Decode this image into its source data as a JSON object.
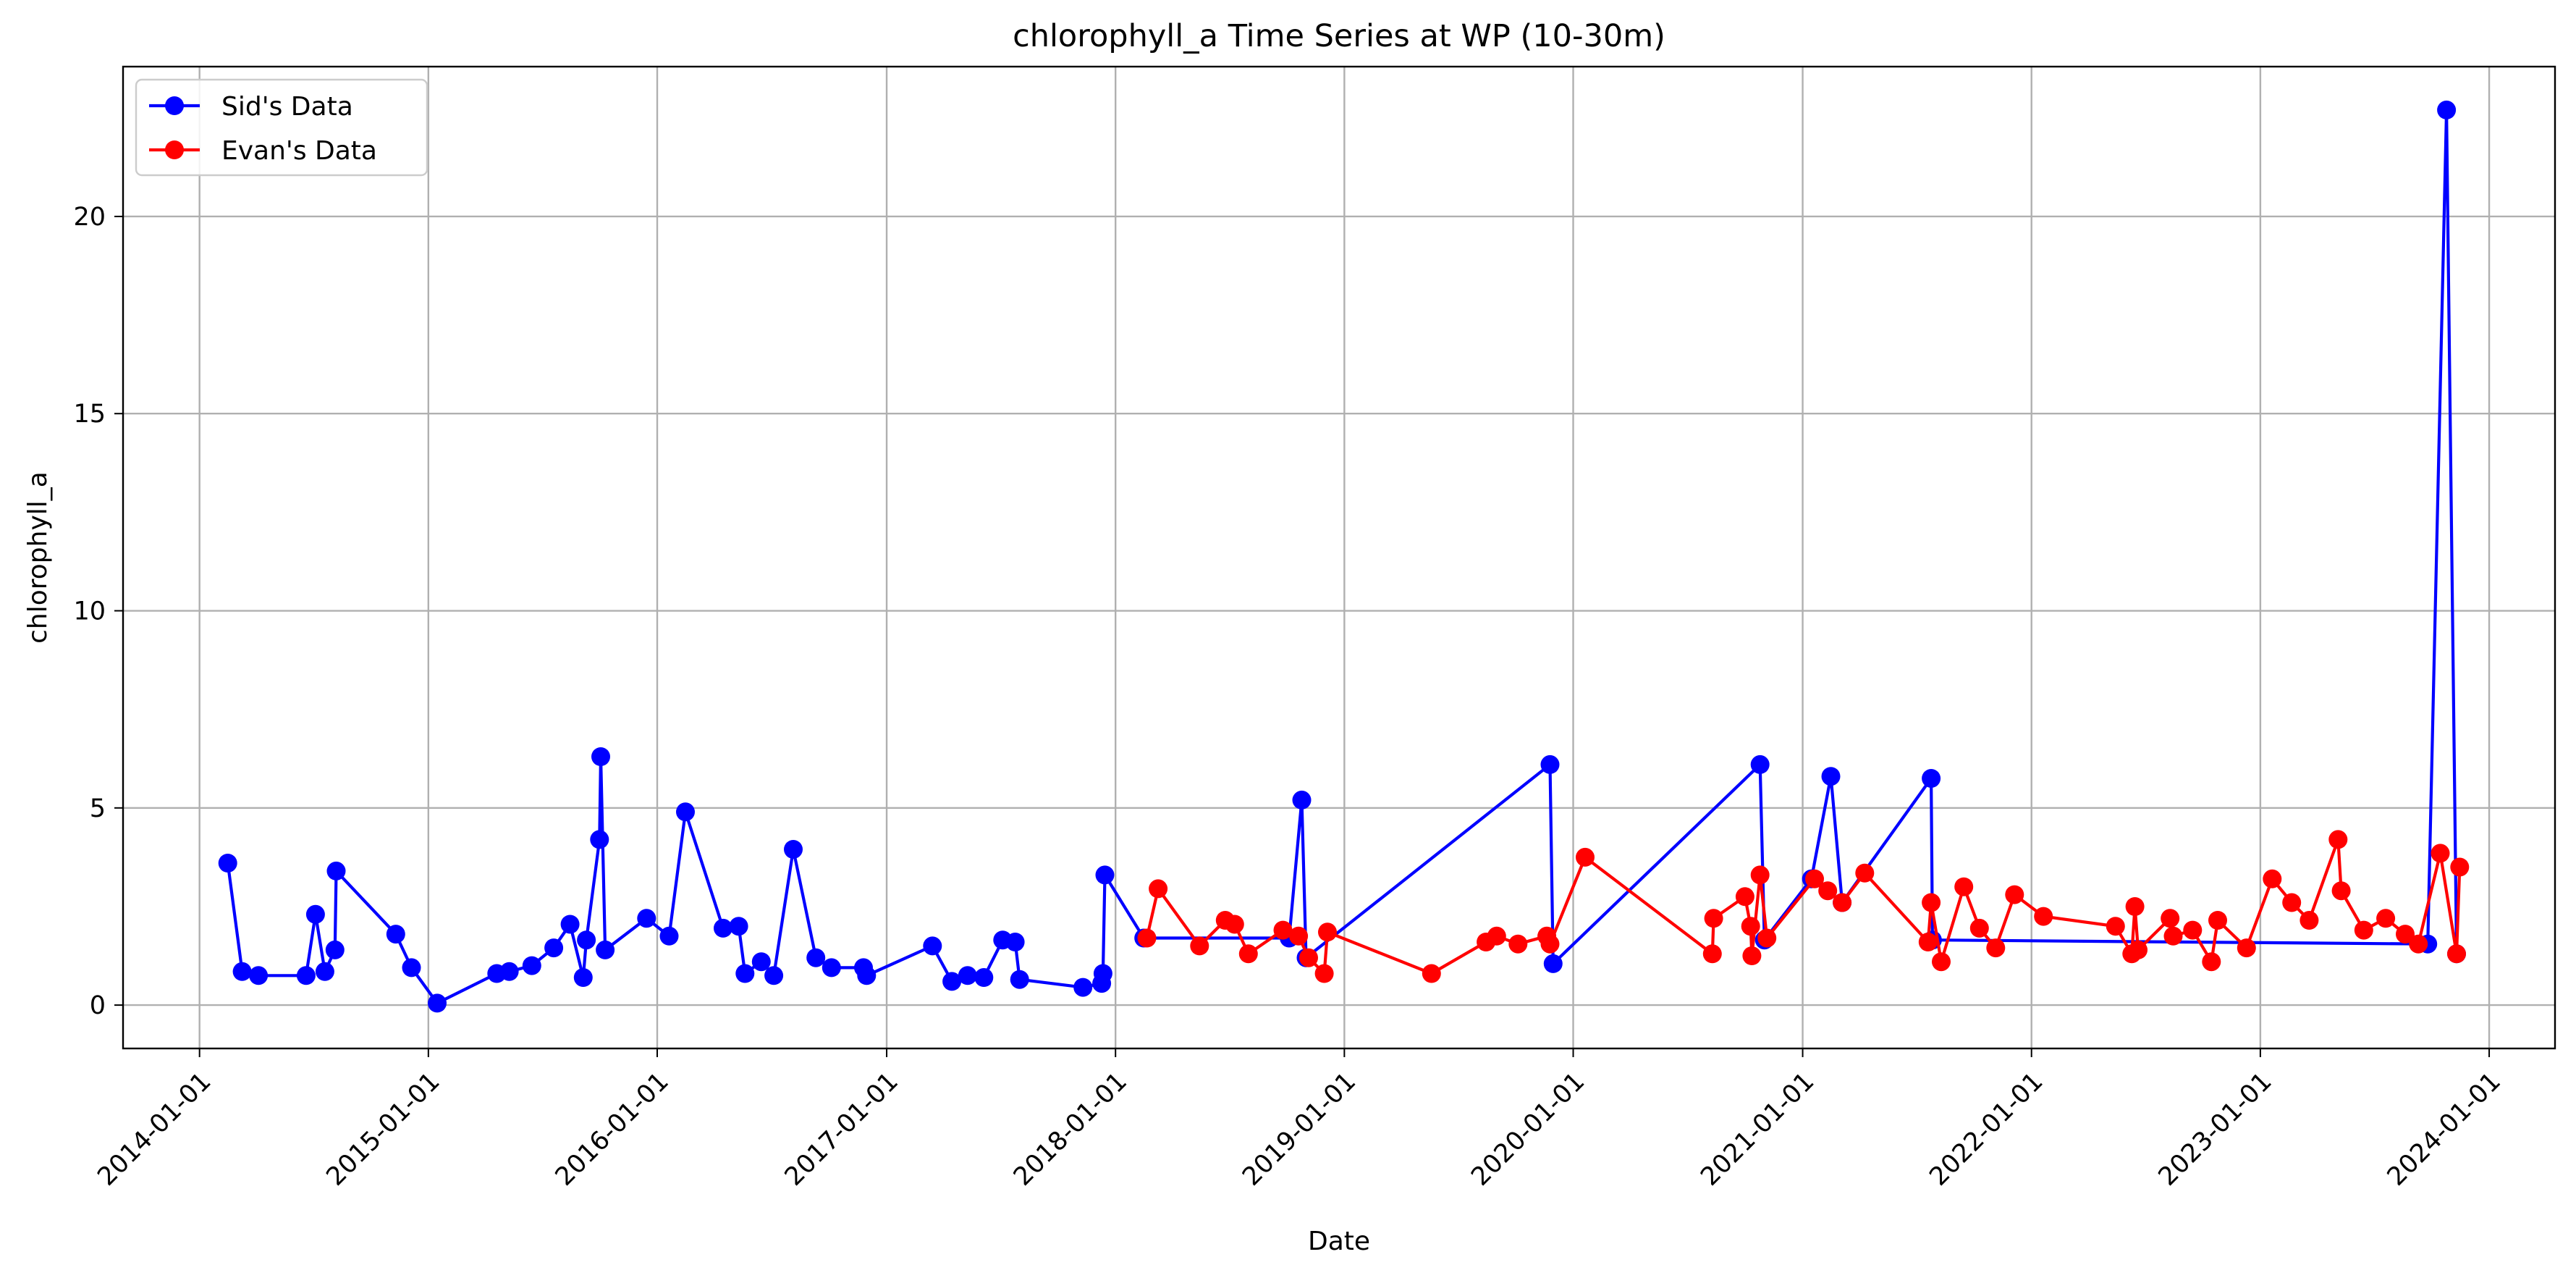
{
  "chart_data": {
    "type": "line",
    "title": "chlorophyll_a Time Series at WP (10-30m)",
    "xlabel": "Date",
    "ylabel": "chlorophyll_a",
    "x_axis": "date",
    "xlim": [
      "2013-09-01",
      "2024-04-15"
    ],
    "ylim": [
      -1.1,
      23.8
    ],
    "yticks": [
      0,
      5,
      10,
      15,
      20
    ],
    "xticks": [
      "2014-01-01",
      "2015-01-01",
      "2016-01-01",
      "2017-01-01",
      "2018-01-01",
      "2019-01-01",
      "2020-01-01",
      "2021-01-01",
      "2022-01-01",
      "2023-01-01",
      "2024-01-01"
    ],
    "grid": true,
    "legend_position": "top-left",
    "marker": "circle",
    "series": [
      {
        "name": "Sid's Data",
        "color": "#0000ff",
        "points": [
          [
            "2014-02-15",
            3.6
          ],
          [
            "2014-03-10",
            0.85
          ],
          [
            "2014-04-05",
            0.75
          ],
          [
            "2014-06-20",
            0.75
          ],
          [
            "2014-07-05",
            2.3
          ],
          [
            "2014-07-20",
            0.85
          ],
          [
            "2014-08-05",
            1.4
          ],
          [
            "2014-08-07",
            3.4
          ],
          [
            "2014-11-10",
            1.8
          ],
          [
            "2014-12-05",
            0.95
          ],
          [
            "2015-01-15",
            0.05
          ],
          [
            "2015-04-20",
            0.8
          ],
          [
            "2015-05-10",
            0.85
          ],
          [
            "2015-06-15",
            1.0
          ],
          [
            "2015-07-20",
            1.45
          ],
          [
            "2015-08-15",
            2.05
          ],
          [
            "2015-09-05",
            0.7
          ],
          [
            "2015-09-10",
            1.65
          ],
          [
            "2015-10-01",
            4.2
          ],
          [
            "2015-10-03",
            6.3
          ],
          [
            "2015-10-10",
            1.4
          ],
          [
            "2015-12-15",
            2.2
          ],
          [
            "2016-01-20",
            1.75
          ],
          [
            "2016-02-15",
            4.9
          ],
          [
            "2016-04-15",
            1.95
          ],
          [
            "2016-05-10",
            2.0
          ],
          [
            "2016-05-20",
            0.8
          ],
          [
            "2016-06-15",
            1.1
          ],
          [
            "2016-07-05",
            0.75
          ],
          [
            "2016-08-05",
            3.95
          ],
          [
            "2016-09-10",
            1.2
          ],
          [
            "2016-10-05",
            0.95
          ],
          [
            "2016-11-25",
            0.95
          ],
          [
            "2016-11-30",
            0.75
          ],
          [
            "2017-03-15",
            1.5
          ],
          [
            "2017-04-15",
            0.6
          ],
          [
            "2017-05-10",
            0.75
          ],
          [
            "2017-06-05",
            0.7
          ],
          [
            "2017-07-05",
            1.65
          ],
          [
            "2017-07-25",
            1.6
          ],
          [
            "2017-08-01",
            0.65
          ],
          [
            "2017-11-10",
            0.45
          ],
          [
            "2017-12-10",
            0.55
          ],
          [
            "2017-12-12",
            0.8
          ],
          [
            "2017-12-15",
            3.3
          ],
          [
            "2018-02-15",
            1.7
          ],
          [
            "2018-10-05",
            1.7
          ],
          [
            "2018-10-25",
            5.2
          ],
          [
            "2018-11-01",
            1.2
          ],
          [
            "2019-11-25",
            6.1
          ],
          [
            "2019-11-30",
            1.05
          ],
          [
            "2020-10-25",
            6.1
          ],
          [
            "2020-11-01",
            1.65
          ],
          [
            "2021-01-15",
            3.2
          ],
          [
            "2021-02-15",
            5.8
          ],
          [
            "2021-03-05",
            2.6
          ],
          [
            "2021-07-25",
            5.75
          ],
          [
            "2021-07-27",
            1.65
          ],
          [
            "2023-09-25",
            1.55
          ],
          [
            "2023-10-25",
            22.7
          ],
          [
            "2023-11-10",
            1.3
          ]
        ]
      },
      {
        "name": "Evan's Data",
        "color": "#ff0000",
        "points": [
          [
            "2018-02-20",
            1.7
          ],
          [
            "2018-03-10",
            2.95
          ],
          [
            "2018-05-15",
            1.5
          ],
          [
            "2018-06-25",
            2.15
          ],
          [
            "2018-07-10",
            2.05
          ],
          [
            "2018-08-01",
            1.3
          ],
          [
            "2018-09-25",
            1.9
          ],
          [
            "2018-10-20",
            1.75
          ],
          [
            "2018-11-05",
            1.2
          ],
          [
            "2018-11-30",
            0.8
          ],
          [
            "2018-12-05",
            1.85
          ],
          [
            "2019-05-20",
            0.8
          ],
          [
            "2019-08-15",
            1.6
          ],
          [
            "2019-09-01",
            1.75
          ],
          [
            "2019-10-05",
            1.55
          ],
          [
            "2019-11-20",
            1.75
          ],
          [
            "2019-11-25",
            1.55
          ],
          [
            "2020-01-20",
            3.75
          ],
          [
            "2020-08-10",
            1.3
          ],
          [
            "2020-08-12",
            2.2
          ],
          [
            "2020-10-01",
            2.75
          ],
          [
            "2020-10-10",
            2.0
          ],
          [
            "2020-10-12",
            1.25
          ],
          [
            "2020-10-25",
            3.3
          ],
          [
            "2020-11-05",
            1.7
          ],
          [
            "2021-01-20",
            3.2
          ],
          [
            "2021-02-10",
            2.9
          ],
          [
            "2021-03-05",
            2.6
          ],
          [
            "2021-04-10",
            3.35
          ],
          [
            "2021-07-20",
            1.6
          ],
          [
            "2021-07-25",
            2.6
          ],
          [
            "2021-08-10",
            1.1
          ],
          [
            "2021-09-15",
            3.0
          ],
          [
            "2021-10-10",
            1.95
          ],
          [
            "2021-11-05",
            1.45
          ],
          [
            "2021-12-05",
            2.8
          ],
          [
            "2022-01-20",
            2.25
          ],
          [
            "2022-05-15",
            2.0
          ],
          [
            "2022-06-10",
            1.3
          ],
          [
            "2022-06-15",
            2.5
          ],
          [
            "2022-06-20",
            1.4
          ],
          [
            "2022-08-10",
            2.2
          ],
          [
            "2022-08-15",
            1.75
          ],
          [
            "2022-09-15",
            1.9
          ],
          [
            "2022-10-15",
            1.1
          ],
          [
            "2022-10-25",
            2.15
          ],
          [
            "2022-12-10",
            1.45
          ],
          [
            "2023-01-20",
            3.2
          ],
          [
            "2023-02-20",
            2.6
          ],
          [
            "2023-03-20",
            2.15
          ],
          [
            "2023-05-05",
            4.2
          ],
          [
            "2023-05-10",
            2.9
          ],
          [
            "2023-06-15",
            1.9
          ],
          [
            "2023-07-20",
            2.2
          ],
          [
            "2023-08-20",
            1.8
          ],
          [
            "2023-09-10",
            1.55
          ],
          [
            "2023-10-15",
            3.85
          ],
          [
            "2023-11-10",
            1.3
          ],
          [
            "2023-11-15",
            3.5
          ]
        ]
      }
    ]
  }
}
